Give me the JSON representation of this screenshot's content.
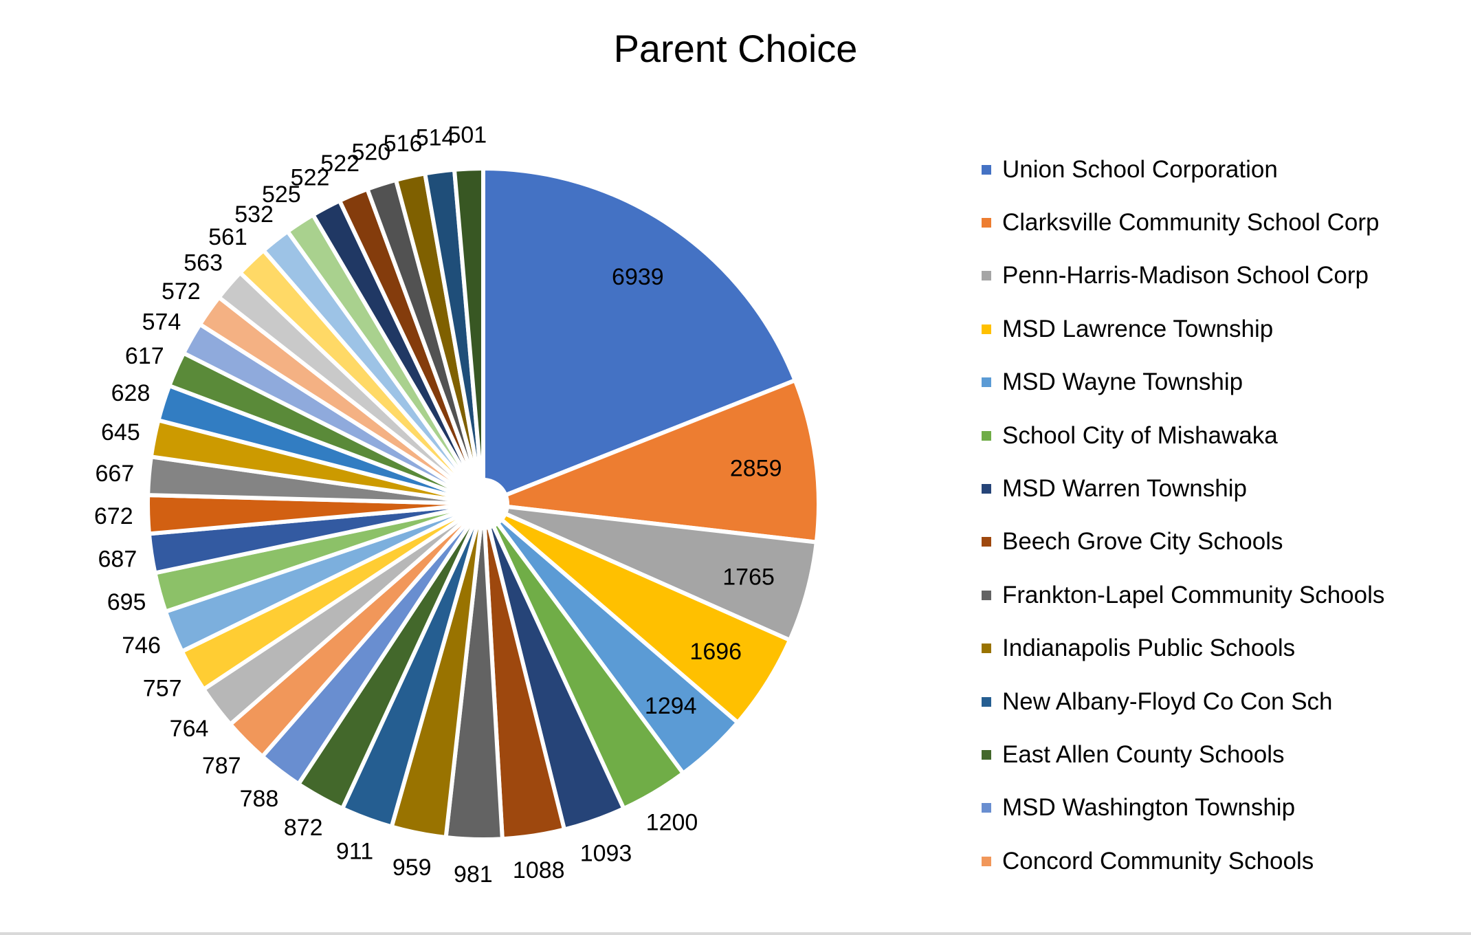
{
  "chart_data": {
    "type": "pie",
    "title": "Parent Choice",
    "values": [
      6939,
      2859,
      1765,
      1696,
      1294,
      1200,
      1093,
      1088,
      981,
      959,
      911,
      872,
      788,
      787,
      764,
      757,
      746,
      695,
      687,
      672,
      667,
      645,
      628,
      617,
      574,
      572,
      563,
      561,
      532,
      525,
      522,
      522,
      520,
      516,
      514,
      501
    ],
    "legend": [
      "Union School Corporation",
      "Clarksville Community School Corp",
      "Penn-Harris-Madison School Corp",
      "MSD Lawrence Township",
      "MSD Wayne Township",
      "School City of Mishawaka",
      "MSD Warren Township",
      "Beech Grove City Schools",
      "Frankton-Lapel Community Schools",
      "Indianapolis Public Schools",
      "New Albany-Floyd Co Con Sch",
      "East Allen County Schools",
      "MSD Washington Township",
      "Concord Community Schools"
    ],
    "legend_position": "right",
    "start_angle": "12 o'clock, clockwise",
    "colors": [
      "#4472C4",
      "#ED7D31",
      "#A5A5A5",
      "#FFC000",
      "#5B9BD5",
      "#70AD47",
      "#264478",
      "#9E480E",
      "#636363",
      "#997300",
      "#255E91",
      "#43682B",
      "#698ED0",
      "#F1975A",
      "#B7B7B7",
      "#FFCD33",
      "#7CAFDD",
      "#8CC168",
      "#335AA1",
      "#D26012",
      "#848484",
      "#CC9A00",
      "#327DC2",
      "#5A8A39",
      "#8FAADC",
      "#F4B183",
      "#C9C9C9",
      "#FFD966",
      "#9DC3E6",
      "#A9D18E",
      "#203864",
      "#843C0C",
      "#525252",
      "#7F6000",
      "#1F4E79",
      "#385723"
    ]
  }
}
